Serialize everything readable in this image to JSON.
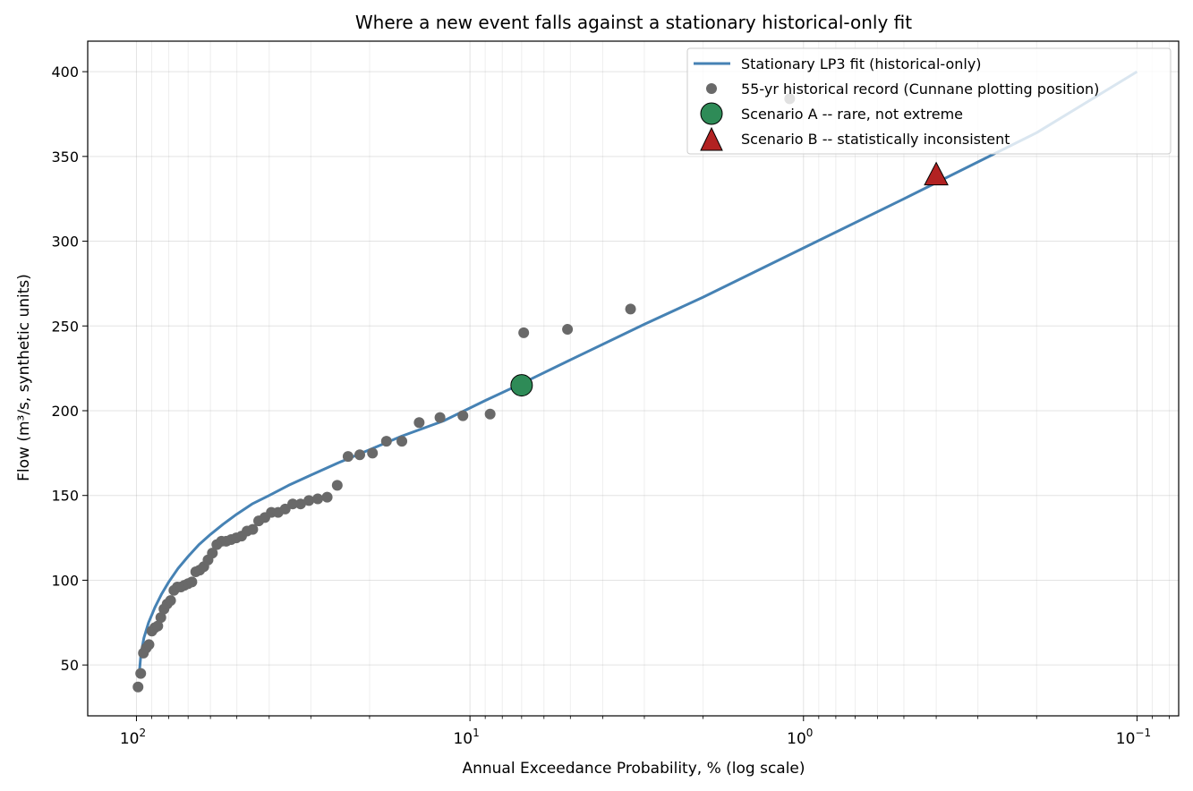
{
  "chart_data": {
    "type": "scatter",
    "title": "Where a new event falls against a stationary historical-only fit",
    "xlabel": "Annual Exceedance Probability, %  (log scale)",
    "ylabel": "Flow (m³/s, synthetic units)",
    "x_scale": "log",
    "x_reversed": true,
    "xlim": [
      140,
      0.075
    ],
    "ylim": [
      20,
      418
    ],
    "grid": true,
    "legend_position": "top-right",
    "x_ticks": [
      {
        "value": 100,
        "base": "10",
        "exp": "2"
      },
      {
        "value": 10,
        "base": "10",
        "exp": "1"
      },
      {
        "value": 1,
        "base": "10",
        "exp": "0"
      },
      {
        "value": 0.1,
        "base": "10",
        "exp": "−1"
      }
    ],
    "y_ticks": [
      {
        "value": 50,
        "label": "50"
      },
      {
        "value": 100,
        "label": "100"
      },
      {
        "value": 150,
        "label": "150"
      },
      {
        "value": 200,
        "label": "200"
      },
      {
        "value": 250,
        "label": "250"
      },
      {
        "value": 300,
        "label": "300"
      },
      {
        "value": 350,
        "label": "350"
      },
      {
        "value": 400,
        "label": "400"
      }
    ],
    "series": [
      {
        "name": "Stationary LP3 fit (historical-only)",
        "kind": "line",
        "color": "#4682b4",
        "x": [
          98.2,
          97,
          95,
          92,
          88,
          84,
          80,
          75,
          70,
          65,
          60,
          55,
          50,
          45,
          40,
          35,
          30,
          25,
          20,
          16,
          12,
          9,
          7,
          5,
          3,
          2,
          1,
          0.5,
          0.2,
          0.1
        ],
        "y": [
          44,
          56,
          66,
          75,
          84,
          92,
          99,
          107,
          114,
          121,
          127,
          133,
          139,
          145,
          150,
          156,
          162,
          169,
          177,
          185,
          194,
          206,
          216,
          230,
          251,
          267,
          296,
          325,
          364,
          400
        ]
      },
      {
        "name": "55-yr historical record (Cunnane plotting position)",
        "kind": "scatter",
        "color": "#696969",
        "x": [
          98.9,
          97.1,
          95.3,
          93.5,
          91.7,
          89.9,
          88.1,
          86.3,
          84.5,
          82.7,
          80.9,
          79.0,
          77.2,
          75.4,
          73.6,
          71.8,
          70.0,
          68.2,
          66.4,
          64.6,
          62.8,
          61.0,
          59.2,
          57.4,
          55.6,
          53.8,
          52.0,
          50.2,
          48.4,
          46.6,
          44.8,
          43.0,
          41.2,
          39.4,
          37.6,
          35.8,
          34.0,
          32.2,
          30.4,
          28.6,
          26.8,
          25.0,
          23.2,
          21.4,
          19.6,
          17.8,
          16.0,
          14.2,
          12.3,
          10.5,
          8.7,
          6.9,
          5.1,
          3.3,
          1.1
        ],
        "y": [
          37,
          45,
          57,
          60,
          62,
          70,
          72,
          73,
          78,
          83,
          86,
          88,
          94,
          96,
          96,
          97,
          98,
          99,
          105,
          106,
          108,
          112,
          116,
          121,
          123,
          123,
          124,
          125,
          126,
          129,
          130,
          135,
          137,
          140,
          140,
          142,
          145,
          145,
          147,
          148,
          149,
          156,
          173,
          174,
          175,
          182,
          182,
          193,
          196,
          197,
          198,
          246,
          248,
          260,
          384
        ]
      },
      {
        "name": "Scenario A -- rare, not extreme",
        "kind": "point",
        "marker": "circle",
        "color": "#2e8b57",
        "x": [
          7.0
        ],
        "y": [
          215
        ]
      },
      {
        "name": "Scenario B -- statistically inconsistent",
        "kind": "point",
        "marker": "triangle",
        "color": "#b22222",
        "x": [
          0.4
        ],
        "y": [
          339
        ]
      }
    ]
  }
}
